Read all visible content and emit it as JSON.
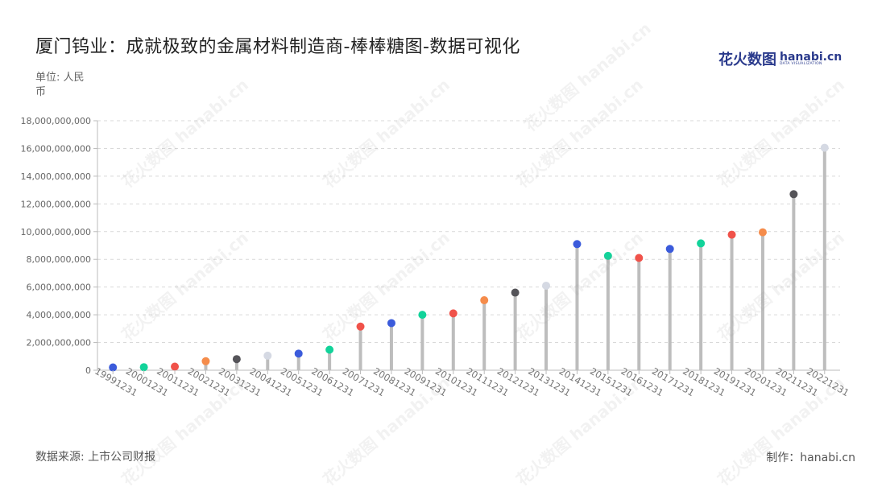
{
  "header": {
    "title": "厦门钨业：成就极致的金属材料制造商-棒棒糖图-数据可视化",
    "unit_label": "单位: 人民币",
    "logo_cn": "花火数图",
    "logo_en": "hanabi.cn",
    "logo_sub": "DATA VISUALIZATION"
  },
  "footer": {
    "source": "数据来源: 上市公司财报",
    "credit": "制作：hanabi.cn"
  },
  "watermark_text": "花火数图 hanabi.cn",
  "chart_data": {
    "type": "lollipop",
    "title": "厦门钨业：成就极致的金属材料制造商-棒棒糖图-数据可视化",
    "ylabel": "单位: 人民币",
    "ylim": [
      0,
      18000000000
    ],
    "yticks": [
      0,
      2000000000,
      4000000000,
      6000000000,
      8000000000,
      10000000000,
      12000000000,
      14000000000,
      16000000000,
      18000000000
    ],
    "ytick_labels": [
      "0",
      "2,000,000,000",
      "4,000,000,000",
      "6,000,000,000",
      "8,000,000,000",
      "10,000,000,000",
      "12,000,000,000",
      "14,000,000,000",
      "16,000,000,000",
      "18,000,000,000"
    ],
    "categories": [
      "19991231",
      "20001231",
      "20011231",
      "20021231",
      "20031231",
      "20041231",
      "20051231",
      "20061231",
      "20071231",
      "20081231",
      "20091231",
      "20101231",
      "20111231",
      "20121231",
      "20131231",
      "20141231",
      "20151231",
      "20161231",
      "20171231",
      "20181231",
      "20191231",
      "20201231",
      "20211231",
      "20221231"
    ],
    "values": [
      200000000,
      220000000,
      260000000,
      650000000,
      800000000,
      1050000000,
      1200000000,
      1480000000,
      3150000000,
      3400000000,
      4000000000,
      4100000000,
      5050000000,
      5600000000,
      6100000000,
      9100000000,
      8250000000,
      8100000000,
      8750000000,
      9150000000,
      9780000000,
      9950000000,
      12700000000,
      16050000000
    ],
    "dot_colors": [
      "#3b5bdb",
      "#12d39a",
      "#f0524a",
      "#f58c4b",
      "#555459",
      "#d5d9e3",
      "#3b5bdb",
      "#12d39a",
      "#f0524a",
      "#3b5bdb",
      "#12d39a",
      "#f0524a",
      "#f58c4b",
      "#555459",
      "#d5d9e3",
      "#3b5bdb",
      "#12d39a",
      "#f0524a",
      "#3b5bdb",
      "#12d39a",
      "#f0524a",
      "#f58c4b",
      "#555459",
      "#d5d9e3"
    ],
    "stem_color": "#bdbdbd",
    "grid": true,
    "legend": "none"
  }
}
